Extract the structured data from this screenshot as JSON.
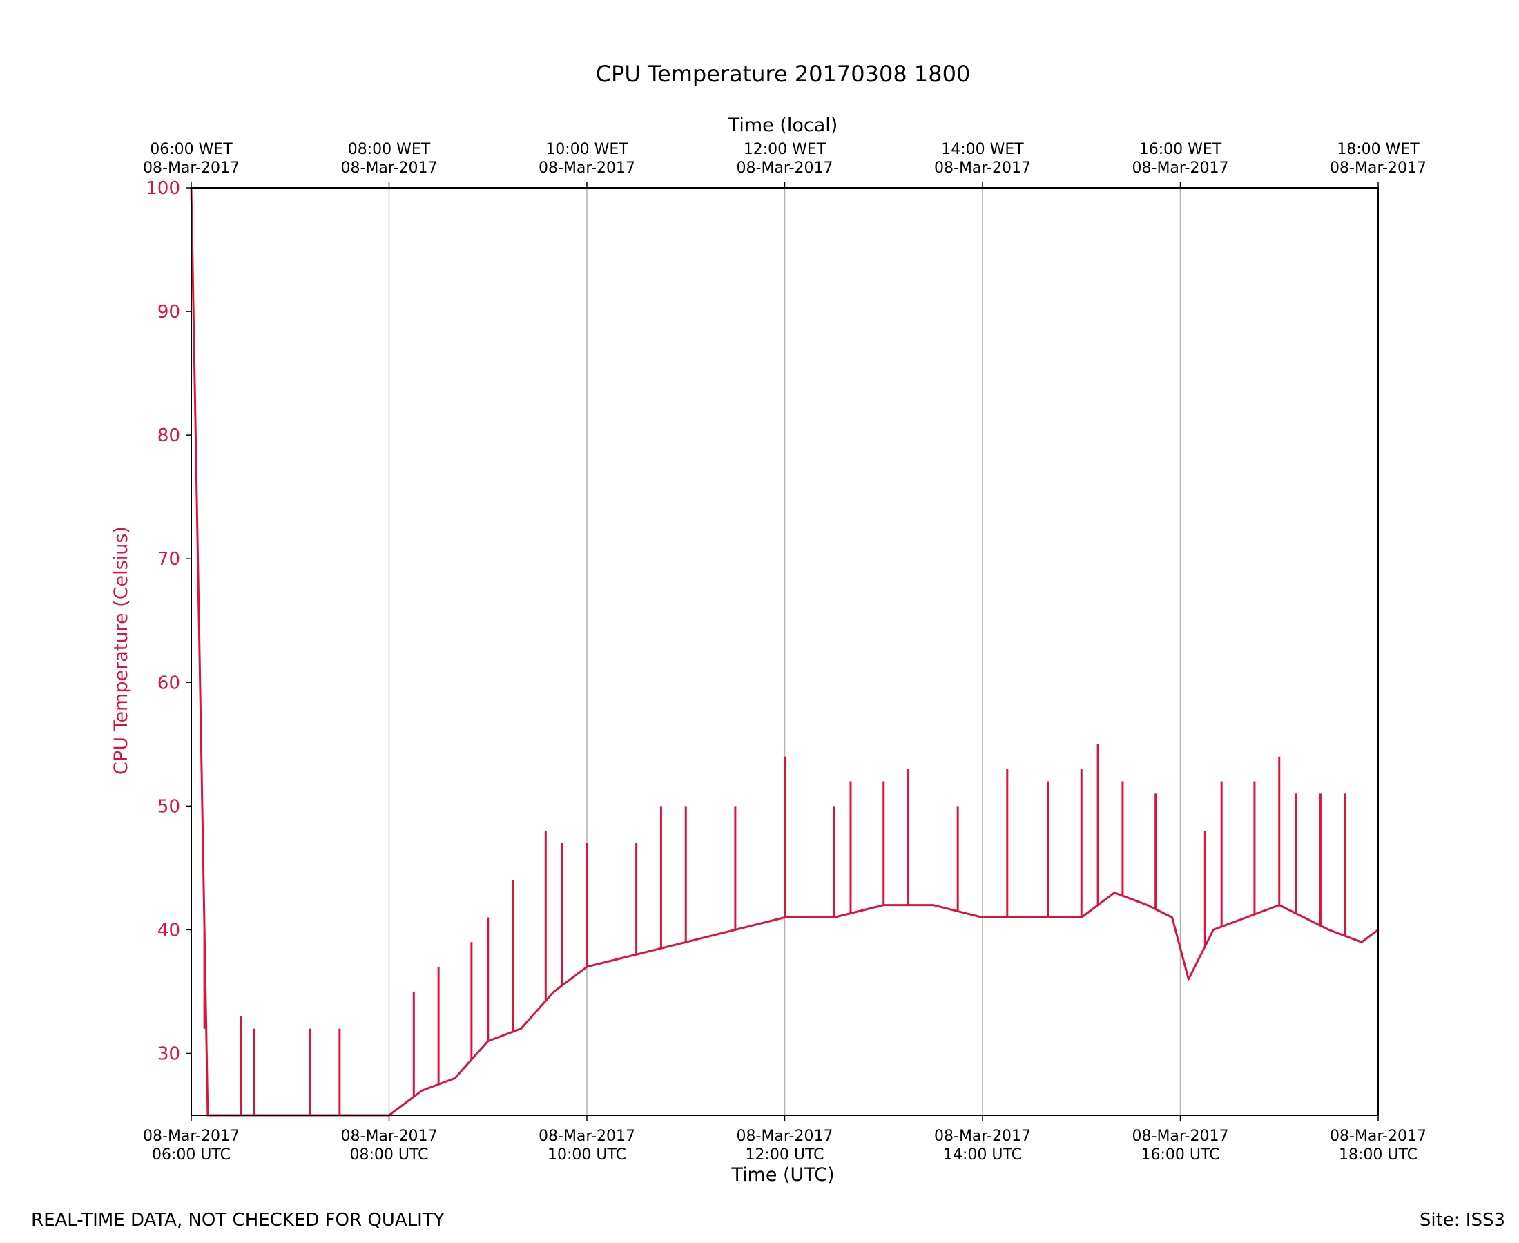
{
  "chart_data": {
    "type": "line",
    "title": "CPU Temperature 20170308 1800",
    "xlabel": "Time (UTC)",
    "x2label": "Time (local)",
    "ylabel": "CPU Temperature (Celsius)",
    "ylim": [
      25,
      100
    ],
    "xlim": [
      "2017-03-08T06:00Z",
      "2017-03-08T18:00Z"
    ],
    "yticks": [
      "30",
      "40",
      "50",
      "60",
      "70",
      "80",
      "90",
      "100"
    ],
    "xticks_bottom": [
      [
        "08-Mar-2017",
        "06:00 UTC"
      ],
      [
        "08-Mar-2017",
        "08:00 UTC"
      ],
      [
        "08-Mar-2017",
        "10:00 UTC"
      ],
      [
        "08-Mar-2017",
        "12:00 UTC"
      ],
      [
        "08-Mar-2017",
        "14:00 UTC"
      ],
      [
        "08-Mar-2017",
        "16:00 UTC"
      ],
      [
        "08-Mar-2017",
        "18:00 UTC"
      ]
    ],
    "xticks_top": [
      [
        "06:00 WET",
        "08-Mar-2017"
      ],
      [
        "08:00 WET",
        "08-Mar-2017"
      ],
      [
        "10:00 WET",
        "08-Mar-2017"
      ],
      [
        "12:00 WET",
        "08-Mar-2017"
      ],
      [
        "14:00 WET",
        "08-Mar-2017"
      ],
      [
        "16:00 WET",
        "08-Mar-2017"
      ],
      [
        "18:00 WET",
        "08-Mar-2017"
      ]
    ],
    "grid": "vertical",
    "series": [
      {
        "color": "#dc143c",
        "x": [
          "2017-03-08T06:00Z",
          "2017-03-08T06:10Z",
          "2017-03-08T06:25Z",
          "2017-03-08T06:40Z",
          "2017-03-08T07:00Z",
          "2017-03-08T07:20Z",
          "2017-03-08T07:40Z",
          "2017-03-08T08:00Z",
          "2017-03-08T08:20Z",
          "2017-03-08T08:40Z",
          "2017-03-08T09:00Z",
          "2017-03-08T09:20Z",
          "2017-03-08T09:40Z",
          "2017-03-08T10:00Z",
          "2017-03-08T10:30Z",
          "2017-03-08T11:00Z",
          "2017-03-08T11:30Z",
          "2017-03-08T12:00Z",
          "2017-03-08T12:30Z",
          "2017-03-08T13:00Z",
          "2017-03-08T13:30Z",
          "2017-03-08T14:00Z",
          "2017-03-08T14:30Z",
          "2017-03-08T15:00Z",
          "2017-03-08T15:20Z",
          "2017-03-08T15:40Z",
          "2017-03-08T15:55Z",
          "2017-03-08T16:05Z",
          "2017-03-08T16:20Z",
          "2017-03-08T16:40Z",
          "2017-03-08T17:00Z",
          "2017-03-08T17:30Z",
          "2017-03-08T17:50Z",
          "2017-03-08T18:00Z"
        ],
        "y": [
          100,
          25,
          25,
          25,
          25,
          25,
          25,
          25,
          27,
          28,
          31,
          32,
          35,
          37,
          38,
          39,
          40,
          41,
          41,
          42,
          42,
          41,
          41,
          41,
          43,
          42,
          41,
          36,
          40,
          41,
          42,
          40,
          39,
          40
        ],
        "spikes": [
          {
            "x": "2017-03-08T06:08Z",
            "y": 32
          },
          {
            "x": "2017-03-08T06:30Z",
            "y": 33
          },
          {
            "x": "2017-03-08T06:38Z",
            "y": 32
          },
          {
            "x": "2017-03-08T07:12Z",
            "y": 32
          },
          {
            "x": "2017-03-08T07:30Z",
            "y": 32
          },
          {
            "x": "2017-03-08T08:15Z",
            "y": 35
          },
          {
            "x": "2017-03-08T08:30Z",
            "y": 37
          },
          {
            "x": "2017-03-08T08:50Z",
            "y": 39
          },
          {
            "x": "2017-03-08T09:00Z",
            "y": 41
          },
          {
            "x": "2017-03-08T09:15Z",
            "y": 44
          },
          {
            "x": "2017-03-08T09:35Z",
            "y": 48
          },
          {
            "x": "2017-03-08T09:45Z",
            "y": 47
          },
          {
            "x": "2017-03-08T10:00Z",
            "y": 47
          },
          {
            "x": "2017-03-08T10:30Z",
            "y": 47
          },
          {
            "x": "2017-03-08T10:45Z",
            "y": 50
          },
          {
            "x": "2017-03-08T11:00Z",
            "y": 50
          },
          {
            "x": "2017-03-08T11:30Z",
            "y": 50
          },
          {
            "x": "2017-03-08T12:00Z",
            "y": 54
          },
          {
            "x": "2017-03-08T12:30Z",
            "y": 50
          },
          {
            "x": "2017-03-08T12:40Z",
            "y": 52
          },
          {
            "x": "2017-03-08T13:00Z",
            "y": 52
          },
          {
            "x": "2017-03-08T13:15Z",
            "y": 53
          },
          {
            "x": "2017-03-08T13:45Z",
            "y": 50
          },
          {
            "x": "2017-03-08T14:15Z",
            "y": 53
          },
          {
            "x": "2017-03-08T14:40Z",
            "y": 52
          },
          {
            "x": "2017-03-08T15:00Z",
            "y": 53
          },
          {
            "x": "2017-03-08T15:10Z",
            "y": 55
          },
          {
            "x": "2017-03-08T15:25Z",
            "y": 52
          },
          {
            "x": "2017-03-08T15:45Z",
            "y": 51
          },
          {
            "x": "2017-03-08T16:15Z",
            "y": 48
          },
          {
            "x": "2017-03-08T16:25Z",
            "y": 52
          },
          {
            "x": "2017-03-08T16:45Z",
            "y": 52
          },
          {
            "x": "2017-03-08T17:00Z",
            "y": 54
          },
          {
            "x": "2017-03-08T17:10Z",
            "y": 51
          },
          {
            "x": "2017-03-08T17:25Z",
            "y": 51
          },
          {
            "x": "2017-03-08T17:40Z",
            "y": 51
          }
        ]
      }
    ]
  },
  "footer": {
    "left": "REAL-TIME DATA, NOT CHECKED FOR QUALITY",
    "right": "Site: ISS3"
  },
  "colors": {
    "series": "#dc143c",
    "y_axis_text": "#dc143c",
    "grid": "#b0b0b0"
  }
}
